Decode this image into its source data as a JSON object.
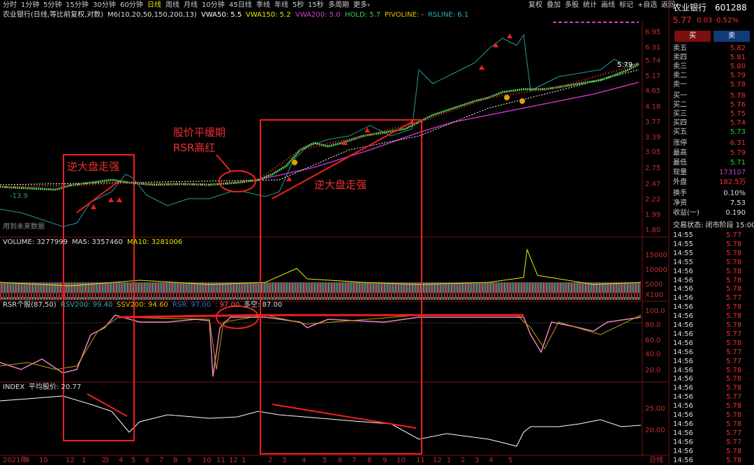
{
  "toolbar": {
    "left": [
      "分时",
      "1分钟",
      "5分钟",
      "15分钟",
      "30分钟",
      "60分钟",
      "日线",
      "周线",
      "月线",
      "10分钟",
      "45日线",
      "季线",
      "年线",
      "5秒",
      "15秒",
      "多周期",
      "更多›"
    ],
    "right": [
      "复权",
      "叠加",
      "多股",
      "统计",
      "画线",
      "标记",
      "+自选",
      "返回"
    ]
  },
  "price_panel": {
    "legend": [
      {
        "text": "农业银行(日线,等比前复权,对数)",
        "color": "#ddd"
      },
      {
        "text": "M6(10,20,50,150,200,13)",
        "color": "#ddd"
      },
      {
        "text": "VWA50: 5.5",
        "color": "#fff"
      },
      {
        "text": "VWA150: 5.2",
        "color": "#e8e800"
      },
      {
        "text": "VWA200: 5.0",
        "color": "#d040d0"
      },
      {
        "text": "HOLD: 5.7",
        "color": "#40d040"
      },
      {
        "text": "PIVOLINE: -",
        "color": "#e8c000"
      },
      {
        "text": "RSLINE: 6.1",
        "color": "#30b0b0"
      }
    ],
    "axis": [
      "6.95",
      "6.31",
      "5.74",
      "5.17",
      "4.65",
      "4.18",
      "3.77",
      "3.39",
      "3.05",
      "2.75",
      "2.47",
      "2.22",
      "1.99",
      "1.80"
    ],
    "notes": [
      "-13.9",
      "用到未来数据",
      "5.79"
    ]
  },
  "volume_panel": {
    "legend": [
      {
        "text": "VOLUME: 3277999",
        "color": "#ddd"
      },
      {
        "text": "MA5: 3357460",
        "color": "#ddd"
      },
      {
        "text": "MA10: 3281006",
        "color": "#e8e800"
      }
    ],
    "axis": [
      "15000",
      "10000",
      "5000",
      "X100"
    ]
  },
  "rsr_panel": {
    "legend": [
      {
        "text": "RSR个股(87,50)",
        "color": "#ddd"
      },
      {
        "text": "RSV200: 99.40",
        "color": "#30b0b0"
      },
      {
        "text": "SSV200: 94.60",
        "color": "#e8c000"
      },
      {
        "text": "RSR: 97.00",
        "color": "#3070d0"
      },
      {
        "text": ": 97.00",
        "color": "#f06060"
      },
      {
        "text": "多空: 87.00",
        "color": "#ddd"
      }
    ],
    "axis": [
      "100.0",
      "80.0",
      "60.0",
      "40.0",
      "20.0"
    ]
  },
  "index_panel": {
    "legend": [
      {
        "text": "INDEX",
        "color": "#ddd"
      },
      {
        "text": "平均股价: 20.77",
        "color": "#ddd"
      }
    ],
    "axis": [
      "25.00",
      "20.00"
    ]
  },
  "x_axis": [
    "2021年",
    "9",
    "10",
    "12",
    "1",
    "2",
    "3",
    "4",
    "5",
    "6",
    "7",
    "8",
    "9",
    "10",
    "11",
    "12",
    "1",
    "2",
    "3",
    "4",
    "5",
    "6",
    "7",
    "8",
    "9",
    "10",
    "11",
    "12",
    "1",
    "2",
    "3",
    "4",
    "5",
    "日线"
  ],
  "annotations": [
    "逆大盘走强",
    "股价平缓期",
    "RSR高红",
    "逆大盘走强"
  ],
  "quote": {
    "name": "农业银行",
    "code": "601288",
    "price": "5.77",
    "change": "0.03",
    "pct": "0.52%",
    "buy": "买",
    "sell": "卖",
    "book": [
      [
        "卖五",
        "5.82"
      ],
      [
        "卖四",
        "5.81"
      ],
      [
        "卖三",
        "5.80"
      ],
      [
        "卖二",
        "5.79"
      ],
      [
        "卖一",
        "5.78"
      ],
      [
        "买一",
        "5.78"
      ],
      [
        "买二",
        "5.76"
      ],
      [
        "买三",
        "5.75"
      ],
      [
        "买四",
        "5.74"
      ],
      [
        "买五",
        "5.73"
      ]
    ],
    "stats": [
      [
        "涨停",
        "6.31"
      ],
      [
        "最高",
        "5.79"
      ],
      [
        "最低",
        "5.71"
      ],
      [
        "现量",
        "173107"
      ],
      [
        "外盘",
        "182.5万"
      ]
    ],
    "ratios": [
      [
        "换手",
        "0.10%"
      ],
      [
        "净资",
        "7.53"
      ],
      [
        "收益(一)",
        "0.190"
      ]
    ],
    "status": "交易状态: 闭市阶段 15:00",
    "ticks": [
      [
        "14:55",
        "5.77"
      ],
      [
        "14:55",
        "5.78"
      ],
      [
        "14:55",
        "5.78"
      ],
      [
        "14:55",
        "5.78"
      ],
      [
        "14:56",
        "5.78"
      ],
      [
        "14:56",
        "5.78"
      ],
      [
        "14:56",
        "5.78"
      ],
      [
        "14:56",
        "5.77"
      ],
      [
        "14:56",
        "5.78"
      ],
      [
        "14:56",
        "5.78"
      ],
      [
        "14:56",
        "5.78"
      ],
      [
        "14:56",
        "5.77"
      ],
      [
        "14:56",
        "5.78"
      ],
      [
        "14:56",
        "5.77"
      ],
      [
        "14:56",
        "5.77"
      ],
      [
        "14:56",
        "5.78"
      ],
      [
        "14:56",
        "5.78"
      ],
      [
        "14:56",
        "5.78"
      ],
      [
        "14:56",
        "5.77"
      ],
      [
        "14:56",
        "5.78"
      ],
      [
        "14:56",
        "5.78"
      ],
      [
        "14:56",
        "5.78"
      ],
      [
        "14:56",
        "5.77"
      ],
      [
        "14:56",
        "5.77"
      ],
      [
        "14:56",
        "5.78"
      ],
      [
        "14:56",
        "5.78"
      ]
    ]
  }
}
